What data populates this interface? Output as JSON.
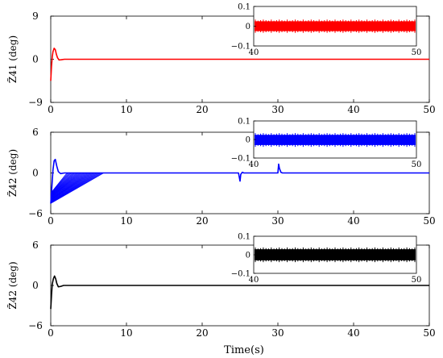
{
  "figure": {
    "xlabel": "Time(s)"
  },
  "chart_data": [
    {
      "type": "line",
      "ylabel": "Z̃41 (deg)",
      "xlim": [
        0,
        50
      ],
      "ylim": [
        -9,
        9
      ],
      "xticks": [
        0,
        10,
        20,
        30,
        40,
        50
      ],
      "yticks": [
        -9,
        0,
        9
      ],
      "series": [
        {
          "color": "#ff0000",
          "x": [
            0,
            0.1,
            0.2,
            0.3,
            0.45,
            0.6,
            0.75,
            0.9,
            1.1,
            1.4,
            1.8,
            2.5,
            4,
            10,
            20,
            30,
            40,
            50
          ],
          "y": [
            -4.5,
            -1.5,
            0.5,
            1.6,
            2.3,
            2.0,
            1.0,
            0.3,
            -0.15,
            -0.1,
            0.0,
            0.0,
            0.0,
            0.0,
            0.0,
            0.0,
            0.0,
            0.0
          ]
        }
      ],
      "inset": {
        "xlim": [
          40,
          50
        ],
        "ylim": [
          -0.1,
          0.1
        ],
        "xticks": [
          40,
          50
        ],
        "yticks": [
          -0.1,
          0,
          0.1
        ],
        "ytick_labels": [
          "−0.1",
          "0",
          "0.1"
        ],
        "band": [
          -0.025,
          0.025
        ],
        "color": "#ff0000"
      }
    },
    {
      "type": "line",
      "ylabel": "Z̃42 (deg)",
      "xlim": [
        0,
        50
      ],
      "ylim": [
        -6,
        6
      ],
      "xticks": [
        0,
        10,
        20,
        30,
        40,
        50
      ],
      "yticks": [
        -6,
        0,
        6
      ],
      "series": [
        {
          "color": "#0000ff",
          "x": [
            0,
            0.15,
            0.3,
            0.45,
            0.6,
            0.8,
            1.0,
            1.3,
            1.8,
            3,
            5,
            7,
            10,
            24.8,
            25.0,
            25.1,
            25.3,
            25.5,
            30.0,
            30.1,
            30.2,
            30.4,
            30.6,
            40,
            50
          ],
          "y": [
            -4.5,
            -2.0,
            0.5,
            1.8,
            2.0,
            1.0,
            0.2,
            -0.1,
            0.0,
            0.0,
            0.0,
            0.0,
            0.0,
            0.0,
            -1.2,
            -0.2,
            0.1,
            0.0,
            0.0,
            1.3,
            0.7,
            0.1,
            0.0,
            0.0,
            0.0
          ]
        }
      ],
      "decay_band": {
        "x_start": 0,
        "x_end": 7,
        "y_min": -4.5,
        "y_max": 0
      },
      "inset": {
        "xlim": [
          40,
          50
        ],
        "ylim": [
          -0.1,
          0.1
        ],
        "xticks": [
          40,
          50
        ],
        "yticks": [
          -0.1,
          0,
          0.1
        ],
        "ytick_labels": [
          "−0.1",
          "0",
          "0.1"
        ],
        "band": [
          -0.03,
          0.025
        ],
        "color": "#0000ff"
      }
    },
    {
      "type": "line",
      "ylabel": "Z̃42 (deg)",
      "xlim": [
        0,
        50
      ],
      "ylim": [
        -6,
        6
      ],
      "xticks": [
        0,
        10,
        20,
        30,
        40,
        50
      ],
      "yticks": [
        -6,
        0,
        6
      ],
      "series": [
        {
          "color": "#000000",
          "x": [
            0,
            0.1,
            0.2,
            0.35,
            0.5,
            0.65,
            0.8,
            1.0,
            1.3,
            1.7,
            2.5,
            4,
            10,
            20,
            30,
            40,
            50
          ],
          "y": [
            -3.5,
            -1.5,
            0.2,
            1.0,
            1.4,
            1.0,
            0.3,
            -0.2,
            -0.15,
            0.0,
            0.0,
            0.0,
            0.0,
            0.0,
            0.0,
            0.0,
            0.0
          ]
        }
      ],
      "inset": {
        "xlim": [
          40,
          50
        ],
        "ylim": [
          -0.1,
          0.1
        ],
        "xticks": [
          40,
          50
        ],
        "yticks": [
          -0.1,
          0,
          0.1
        ],
        "ytick_labels": [
          "−0.1",
          "0",
          "0.1"
        ],
        "band": [
          -0.03,
          0.03
        ],
        "color": "#000000"
      }
    }
  ]
}
